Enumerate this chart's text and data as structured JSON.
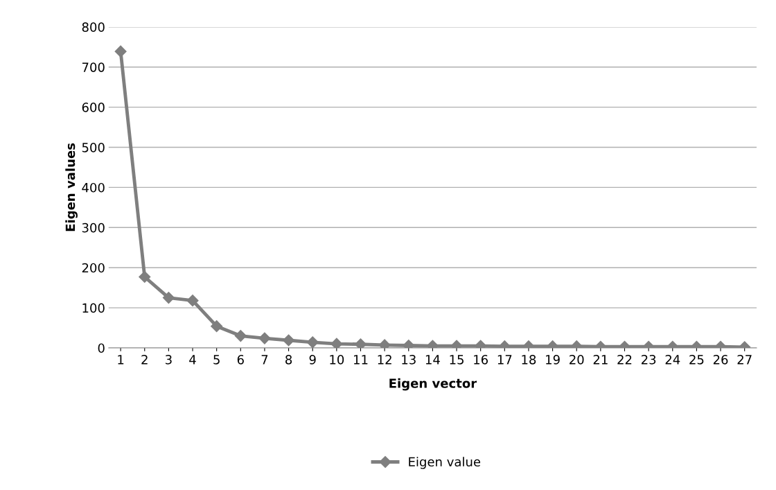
{
  "chart_data": {
    "type": "line",
    "xlabel": "Eigen vector",
    "ylabel": "Eigen values",
    "categories": [
      "1",
      "2",
      "3",
      "4",
      "5",
      "6",
      "7",
      "8",
      "9",
      "10",
      "11",
      "12",
      "13",
      "14",
      "15",
      "16",
      "17",
      "18",
      "19",
      "20",
      "21",
      "22",
      "23",
      "24",
      "25",
      "26",
      "27"
    ],
    "series": [
      {
        "name": "Eigen value",
        "color": "#7f7f7f",
        "values": [
          739,
          177,
          125,
          118,
          54,
          30,
          24,
          19,
          14,
          10,
          9,
          7,
          6,
          5,
          5,
          5,
          4,
          4,
          4,
          4,
          3,
          3,
          3,
          3,
          3,
          3,
          2
        ]
      }
    ],
    "ylim": [
      0,
      800
    ],
    "yticks": [
      0,
      100,
      200,
      300,
      400,
      500,
      600,
      700,
      800
    ],
    "grid": "y",
    "legend": "bottom",
    "marker": "diamond",
    "line_style": "solid"
  }
}
